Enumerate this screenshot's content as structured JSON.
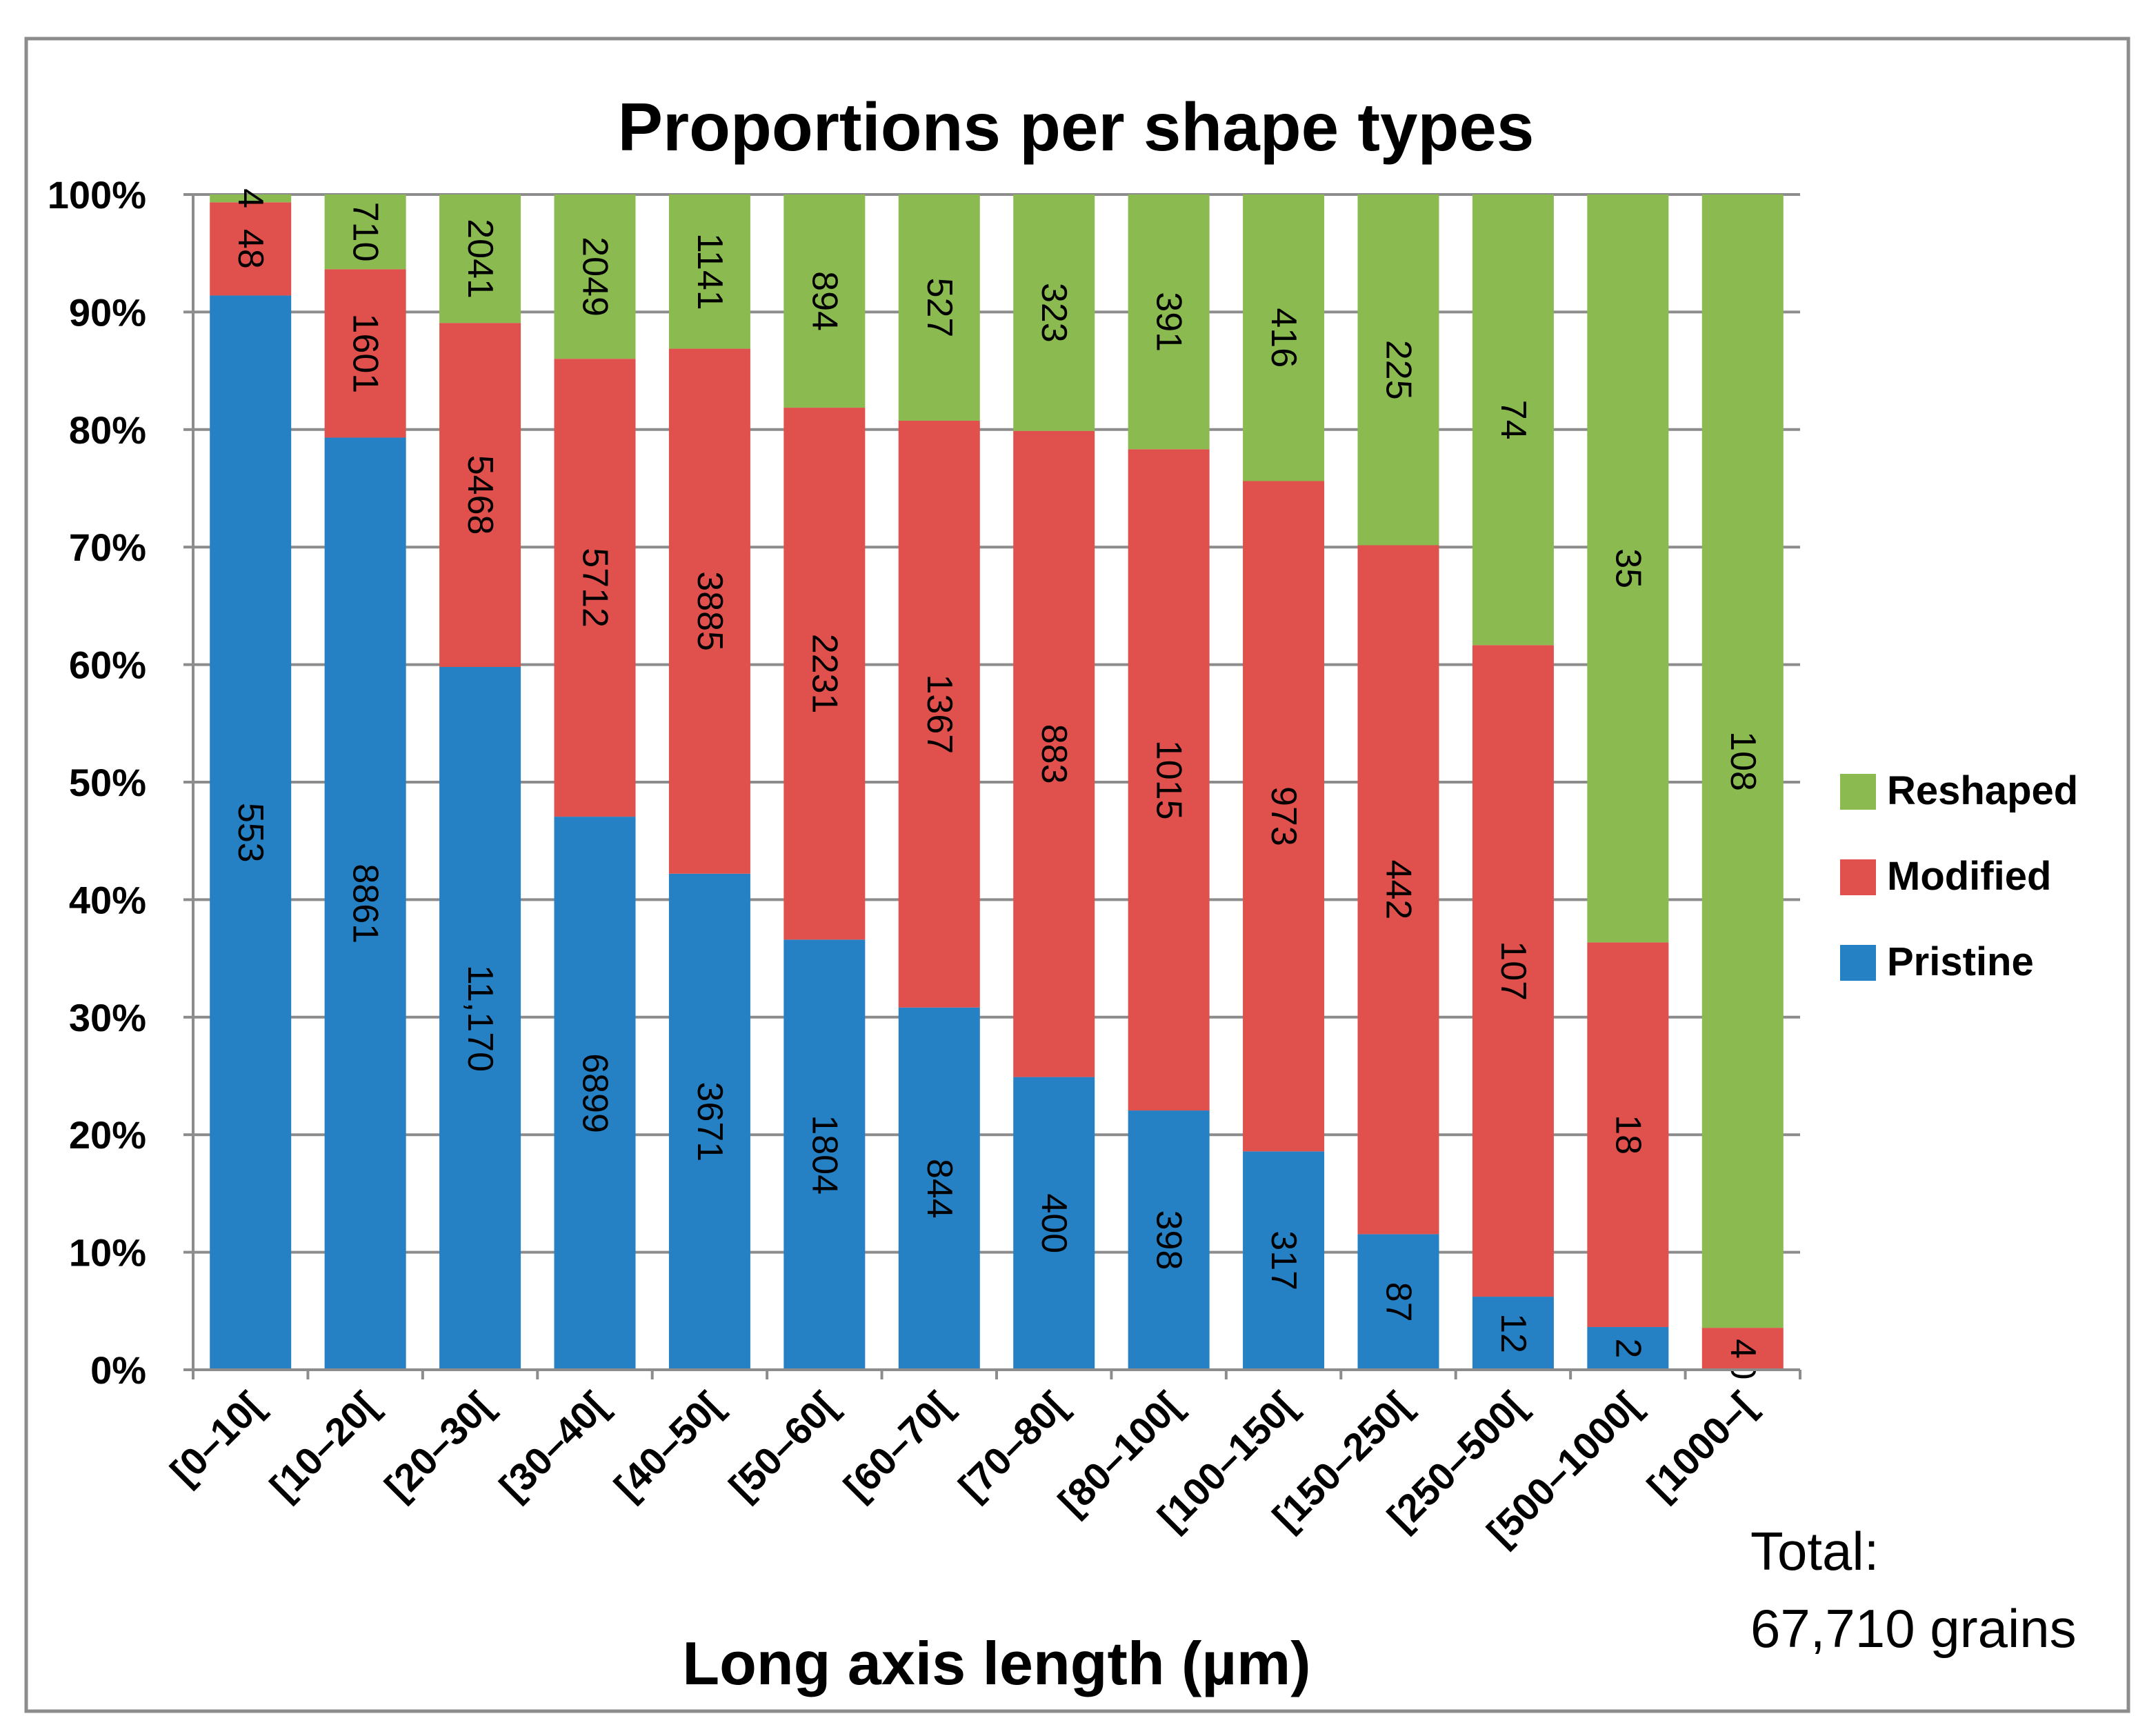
{
  "chart_data": {
    "type": "bar",
    "stacked": "percent",
    "title": "Proportions per shape types",
    "xlabel": "Long axis length (µm)",
    "ylabel": "",
    "ylim": [
      0,
      100
    ],
    "y_ticks": [
      "0%",
      "10%",
      "20%",
      "30%",
      "40%",
      "50%",
      "60%",
      "70%",
      "80%",
      "90%",
      "100%"
    ],
    "categories": [
      "[0–10[",
      "[10–20[",
      "[20–30[",
      "[30–40[",
      "[40–50[",
      "[50–60[",
      "[60–70[",
      "[70–80[",
      "[80–100[",
      "[100–150[",
      "[150–250[",
      "[250–500[",
      "[500–1000[",
      "[1000–["
    ],
    "series": [
      {
        "name": "Pristine",
        "color": "#2581c4",
        "labels": [
          "553",
          "8861",
          "11,170",
          "6899",
          "3671",
          "1804",
          "844",
          "400",
          "398",
          "317",
          "87",
          "12",
          "2",
          "0"
        ],
        "values": [
          553,
          8861,
          11170,
          6899,
          3671,
          1804,
          844,
          400,
          398,
          317,
          87,
          12,
          2,
          0
        ]
      },
      {
        "name": "Modified",
        "color": "#e0504d",
        "labels": [
          "48",
          "1601",
          "5468",
          "5712",
          "3885",
          "2231",
          "1367",
          "883",
          "1015",
          "973",
          "442",
          "107",
          "18",
          "4"
        ],
        "values": [
          48,
          1601,
          5468,
          5712,
          3885,
          2231,
          1367,
          883,
          1015,
          973,
          442,
          107,
          18,
          4
        ]
      },
      {
        "name": "Reshaped",
        "color": "#8bbb50",
        "labels": [
          "4",
          "710",
          "2041",
          "2049",
          "1141",
          "894",
          "527",
          "323",
          "391",
          "416",
          "225",
          "74",
          "35",
          "108"
        ],
        "values": [
          4,
          710,
          2041,
          2049,
          1141,
          894,
          527,
          323,
          391,
          416,
          225,
          74,
          35,
          108
        ]
      }
    ],
    "legend": {
      "position": "right",
      "order": [
        "Reshaped",
        "Modified",
        "Pristine"
      ]
    },
    "grid": true,
    "annotation": {
      "line1": "Total:",
      "line2": "67,710 grains"
    }
  }
}
